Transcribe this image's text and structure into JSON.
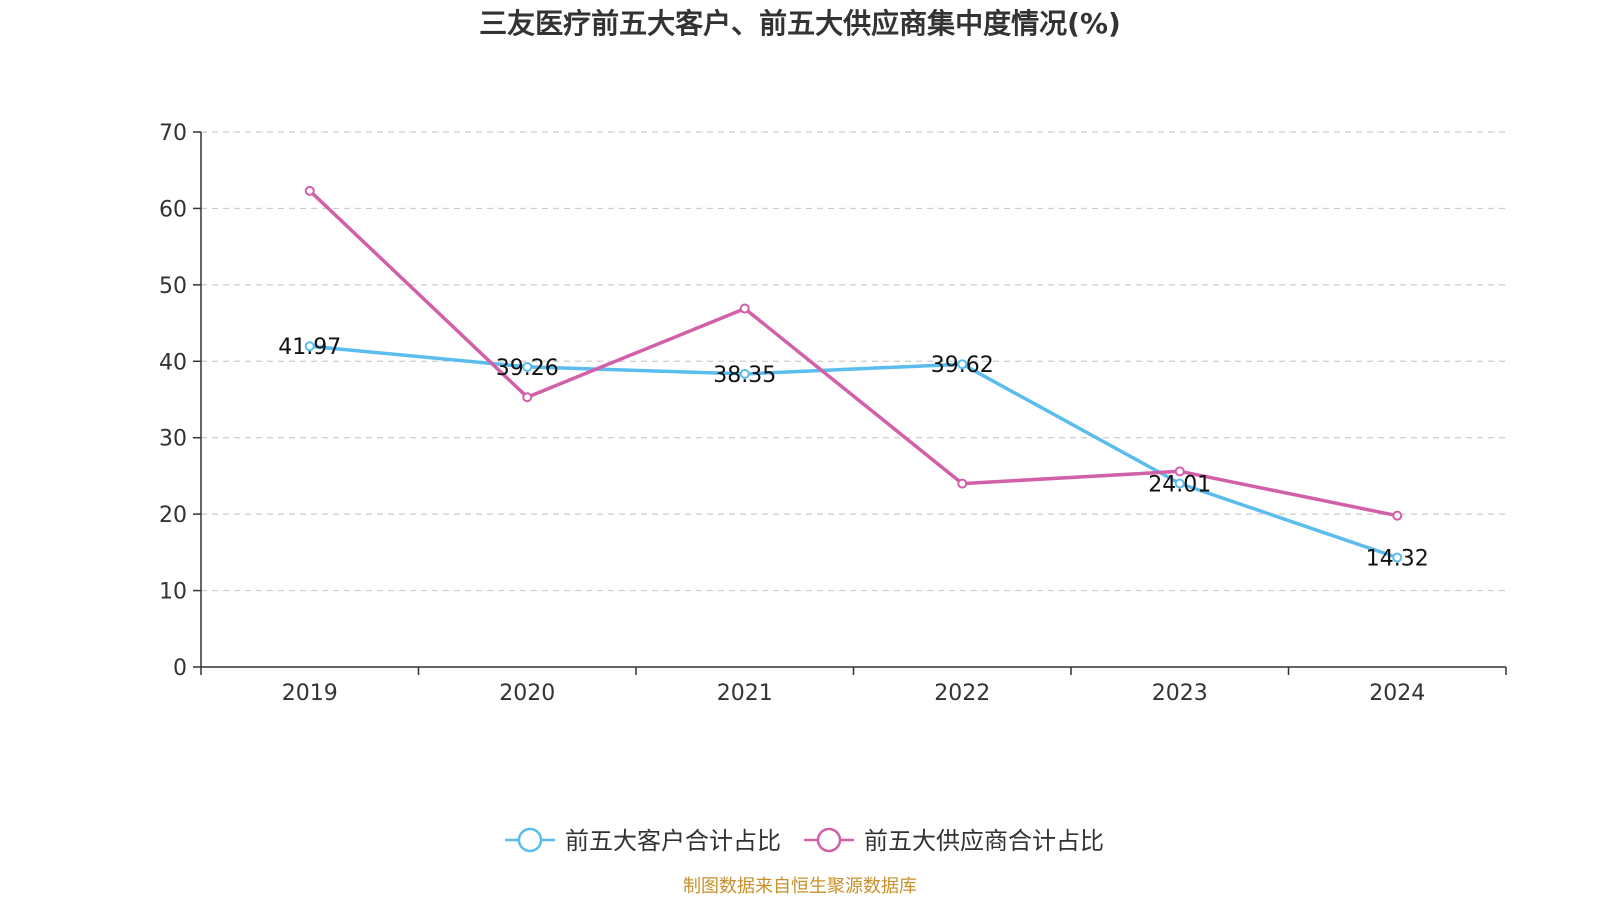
{
  "chart_data": {
    "type": "line",
    "title": "三友医疗前五大客户、前五大供应商集中度情况(%)",
    "categories": [
      "2019",
      "2020",
      "2021",
      "2022",
      "2023",
      "2024"
    ],
    "ylim": [
      0,
      70
    ],
    "yticks": [
      "0",
      "10",
      "20",
      "30",
      "40",
      "50",
      "60",
      "70"
    ],
    "grid": true,
    "legend_position": "bottom-center",
    "series": [
      {
        "name": "前五大客户合计占比",
        "color": "#5bbcee",
        "values": [
          41.97,
          39.26,
          38.35,
          39.62,
          24.01,
          14.32
        ],
        "labels": [
          "41.97",
          "39.26",
          "38.35",
          "39.62",
          "24.01",
          "14.32"
        ],
        "show_labels": true
      },
      {
        "name": "前五大供应商合计占比",
        "color": "#d260a8",
        "values": [
          62.3,
          35.3,
          46.9,
          24.0,
          25.6,
          19.8
        ],
        "show_labels": false
      }
    ]
  },
  "source": "制图数据来自恒生聚源数据库"
}
